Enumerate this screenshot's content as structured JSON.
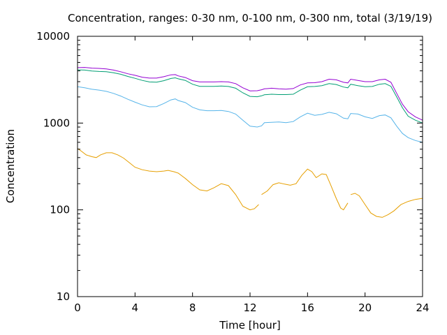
{
  "chart_data": {
    "type": "line",
    "title": "Concentration, ranges: 0-30 nm, 0-100 nm, 0-300 nm, total (3/19/19)",
    "xlabel": "Time [hour]",
    "ylabel": "Concentration",
    "xlim": [
      0,
      24
    ],
    "ylim": [
      10,
      10000
    ],
    "yscale": "log",
    "grid": false,
    "legend": "none",
    "x_ticks": [
      0,
      4,
      8,
      12,
      16,
      20,
      24
    ],
    "x_tick_labels": [
      "0",
      "4",
      "8",
      "12",
      "16",
      "20",
      "24"
    ],
    "y_ticks": [
      10,
      100,
      1000,
      10000
    ],
    "y_tick_labels": [
      "10",
      "100",
      "1000",
      "10000"
    ],
    "series": [
      {
        "color": "#e69f00",
        "segments": [
          [
            [
              0,
              510
            ],
            [
              0.3,
              470
            ],
            [
              0.6,
              430
            ],
            [
              1.0,
              410
            ],
            [
              1.3,
              400
            ],
            [
              1.6,
              430
            ],
            [
              2.0,
              455
            ],
            [
              2.4,
              455
            ],
            [
              2.8,
              430
            ],
            [
              3.2,
              395
            ],
            [
              3.6,
              350
            ],
            [
              4.0,
              310
            ],
            [
              4.5,
              290
            ],
            [
              5.0,
              280
            ],
            [
              5.5,
              275
            ],
            [
              6.0,
              280
            ],
            [
              6.3,
              285
            ],
            [
              6.7,
              275
            ],
            [
              7.0,
              265
            ],
            [
              7.5,
              230
            ],
            [
              8.0,
              195
            ],
            [
              8.5,
              170
            ],
            [
              9.0,
              165
            ],
            [
              9.5,
              180
            ],
            [
              10.0,
              200
            ],
            [
              10.5,
              190
            ],
            [
              11.0,
              150
            ],
            [
              11.5,
              110
            ],
            [
              12.0,
              100
            ],
            [
              12.3,
              103
            ],
            [
              12.6,
              115
            ]
          ],
          [
            [
              12.8,
              150
            ],
            [
              13.2,
              165
            ],
            [
              13.6,
              195
            ],
            [
              14.0,
              205
            ],
            [
              14.4,
              198
            ],
            [
              14.8,
              192
            ],
            [
              15.2,
              200
            ],
            [
              15.6,
              250
            ],
            [
              16.0,
              295
            ],
            [
              16.3,
              275
            ],
            [
              16.6,
              235
            ],
            [
              17.0,
              260
            ],
            [
              17.3,
              255
            ],
            [
              17.6,
              195
            ],
            [
              18.0,
              135
            ],
            [
              18.3,
              105
            ],
            [
              18.5,
              100
            ],
            [
              18.8,
              120
            ]
          ],
          [
            [
              19.0,
              150
            ],
            [
              19.3,
              155
            ],
            [
              19.6,
              145
            ],
            [
              20.0,
              115
            ],
            [
              20.4,
              92
            ],
            [
              20.8,
              84
            ],
            [
              21.2,
              82
            ],
            [
              21.6,
              88
            ],
            [
              22.0,
              97
            ],
            [
              22.5,
              115
            ],
            [
              23.0,
              125
            ],
            [
              23.5,
              132
            ],
            [
              24.0,
              136
            ]
          ]
        ]
      },
      {
        "color": "#56b4e9",
        "segments": [
          [
            [
              0,
              2620
            ],
            [
              0.5,
              2550
            ],
            [
              1.0,
              2450
            ],
            [
              1.5,
              2400
            ],
            [
              2.0,
              2320
            ],
            [
              2.5,
              2200
            ],
            [
              3.0,
              2050
            ],
            [
              3.5,
              1880
            ],
            [
              4.0,
              1740
            ],
            [
              4.5,
              1620
            ],
            [
              5.0,
              1540
            ],
            [
              5.5,
              1550
            ],
            [
              6.0,
              1680
            ],
            [
              6.5,
              1850
            ],
            [
              6.8,
              1900
            ],
            [
              7.0,
              1820
            ],
            [
              7.5,
              1720
            ],
            [
              8.0,
              1520
            ],
            [
              8.5,
              1420
            ],
            [
              9.0,
              1390
            ],
            [
              9.5,
              1390
            ],
            [
              10.0,
              1400
            ],
            [
              10.5,
              1360
            ],
            [
              11.0,
              1270
            ],
            [
              11.5,
              1080
            ],
            [
              12.0,
              920
            ],
            [
              12.5,
              900
            ],
            [
              12.8,
              930
            ],
            [
              13.0,
              1010
            ],
            [
              13.5,
              1020
            ],
            [
              14.0,
              1030
            ],
            [
              14.5,
              1010
            ],
            [
              15.0,
              1040
            ],
            [
              15.5,
              1180
            ],
            [
              16.0,
              1300
            ],
            [
              16.5,
              1230
            ],
            [
              17.0,
              1260
            ],
            [
              17.5,
              1330
            ],
            [
              18.0,
              1280
            ],
            [
              18.5,
              1140
            ],
            [
              18.8,
              1120
            ],
            [
              19.0,
              1290
            ],
            [
              19.5,
              1270
            ],
            [
              20.0,
              1180
            ],
            [
              20.5,
              1130
            ],
            [
              21.0,
              1220
            ],
            [
              21.4,
              1240
            ],
            [
              21.8,
              1150
            ],
            [
              22.2,
              920
            ],
            [
              22.6,
              760
            ],
            [
              23.0,
              680
            ],
            [
              23.5,
              630
            ],
            [
              24.0,
              600
            ]
          ]
        ]
      },
      {
        "color": "#009e73",
        "segments": [
          [
            [
              0,
              4100
            ],
            [
              0.5,
              4080
            ],
            [
              1.0,
              3980
            ],
            [
              1.5,
              3930
            ],
            [
              2.0,
              3900
            ],
            [
              2.5,
              3800
            ],
            [
              3.0,
              3650
            ],
            [
              3.5,
              3450
            ],
            [
              4.0,
              3280
            ],
            [
              4.5,
              3100
            ],
            [
              5.0,
              2980
            ],
            [
              5.5,
              2960
            ],
            [
              6.0,
              3080
            ],
            [
              6.5,
              3270
            ],
            [
              6.8,
              3320
            ],
            [
              7.0,
              3240
            ],
            [
              7.5,
              3100
            ],
            [
              8.0,
              2800
            ],
            [
              8.5,
              2650
            ],
            [
              9.0,
              2650
            ],
            [
              9.5,
              2650
            ],
            [
              10.0,
              2670
            ],
            [
              10.5,
              2640
            ],
            [
              11.0,
              2520
            ],
            [
              11.5,
              2230
            ],
            [
              12.0,
              2030
            ],
            [
              12.5,
              2010
            ],
            [
              12.8,
              2060
            ],
            [
              13.0,
              2120
            ],
            [
              13.5,
              2150
            ],
            [
              14.0,
              2130
            ],
            [
              14.5,
              2130
            ],
            [
              15.0,
              2150
            ],
            [
              15.5,
              2400
            ],
            [
              16.0,
              2620
            ],
            [
              16.5,
              2640
            ],
            [
              17.0,
              2700
            ],
            [
              17.5,
              2850
            ],
            [
              18.0,
              2780
            ],
            [
              18.5,
              2600
            ],
            [
              18.8,
              2550
            ],
            [
              19.0,
              2800
            ],
            [
              19.5,
              2700
            ],
            [
              20.0,
              2620
            ],
            [
              20.5,
              2640
            ],
            [
              21.0,
              2800
            ],
            [
              21.4,
              2850
            ],
            [
              21.8,
              2650
            ],
            [
              22.2,
              2000
            ],
            [
              22.6,
              1500
            ],
            [
              23.0,
              1200
            ],
            [
              23.5,
              1080
            ],
            [
              24.0,
              1000
            ]
          ]
        ]
      },
      {
        "color": "#9400d3",
        "segments": [
          [
            [
              0,
              4350
            ],
            [
              0.5,
              4380
            ],
            [
              1.0,
              4300
            ],
            [
              1.5,
              4270
            ],
            [
              2.0,
              4200
            ],
            [
              2.5,
              4080
            ],
            [
              3.0,
              3900
            ],
            [
              3.5,
              3700
            ],
            [
              4.0,
              3550
            ],
            [
              4.5,
              3380
            ],
            [
              5.0,
              3300
            ],
            [
              5.5,
              3300
            ],
            [
              6.0,
              3420
            ],
            [
              6.5,
              3600
            ],
            [
              6.8,
              3620
            ],
            [
              7.0,
              3500
            ],
            [
              7.5,
              3350
            ],
            [
              8.0,
              3080
            ],
            [
              8.5,
              2980
            ],
            [
              9.0,
              2980
            ],
            [
              9.5,
              2980
            ],
            [
              10.0,
              3000
            ],
            [
              10.5,
              2980
            ],
            [
              11.0,
              2850
            ],
            [
              11.5,
              2550
            ],
            [
              12.0,
              2350
            ],
            [
              12.5,
              2360
            ],
            [
              12.8,
              2420
            ],
            [
              13.0,
              2480
            ],
            [
              13.5,
              2520
            ],
            [
              14.0,
              2480
            ],
            [
              14.5,
              2460
            ],
            [
              15.0,
              2500
            ],
            [
              15.5,
              2750
            ],
            [
              16.0,
              2900
            ],
            [
              16.5,
              2920
            ],
            [
              17.0,
              3000
            ],
            [
              17.5,
              3200
            ],
            [
              18.0,
              3150
            ],
            [
              18.5,
              2950
            ],
            [
              18.8,
              2900
            ],
            [
              19.0,
              3200
            ],
            [
              19.5,
              3100
            ],
            [
              20.0,
              3000
            ],
            [
              20.5,
              3000
            ],
            [
              21.0,
              3150
            ],
            [
              21.4,
              3200
            ],
            [
              21.8,
              2950
            ],
            [
              22.2,
              2200
            ],
            [
              22.6,
              1650
            ],
            [
              23.0,
              1350
            ],
            [
              23.5,
              1180
            ],
            [
              24.0,
              1080
            ]
          ]
        ]
      }
    ]
  }
}
